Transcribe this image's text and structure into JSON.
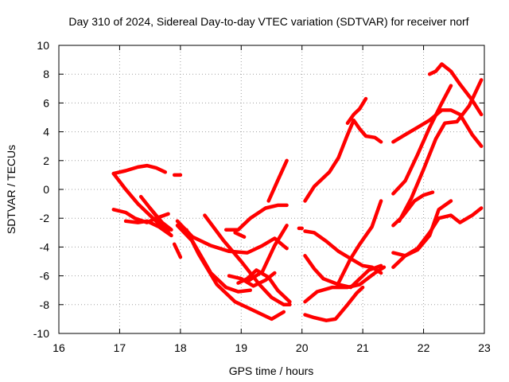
{
  "chart_data": {
    "type": "line",
    "title": "Day 310 of 2024, Sidereal Day-to-day VTEC variation (SDTVAR) for receiver norf",
    "xlabel": "GPS time / hours",
    "ylabel": "SDTVAR / TECUs",
    "xlim": [
      16,
      23
    ],
    "ylim": [
      -10,
      10
    ],
    "xticks": [
      16,
      17,
      18,
      19,
      20,
      21,
      22,
      23
    ],
    "yticks": [
      -10,
      -8,
      -6,
      -4,
      -2,
      0,
      2,
      4,
      6,
      8,
      10
    ],
    "grid": true,
    "legend": "none",
    "color": "#ff0000",
    "series": [
      {
        "x": [
          16.9,
          17.1,
          17.3,
          17.45,
          17.6,
          17.75
        ],
        "y": [
          1.1,
          1.3,
          1.55,
          1.65,
          1.5,
          1.2
        ]
      },
      {
        "x": [
          17.9,
          18.0
        ],
        "y": [
          1.0,
          1.0
        ]
      },
      {
        "x": [
          16.9,
          17.1,
          17.3,
          17.5,
          17.7,
          17.85
        ],
        "y": [
          1.1,
          0.0,
          -1.0,
          -1.8,
          -2.6,
          -3.2
        ]
      },
      {
        "x": [
          16.9,
          17.1,
          17.25,
          17.45,
          17.6,
          17.8
        ],
        "y": [
          -1.4,
          -1.6,
          -2.0,
          -2.3,
          -2.0,
          -1.7
        ]
      },
      {
        "x": [
          17.1,
          17.3,
          17.45,
          17.65,
          17.85
        ],
        "y": [
          -2.2,
          -2.3,
          -2.2,
          -2.6,
          -3.2
        ]
      },
      {
        "x": [
          17.35,
          17.5,
          17.7,
          17.85
        ],
        "y": [
          -0.5,
          -1.3,
          -2.3,
          -2.8
        ]
      },
      {
        "x": [
          17.5,
          17.65,
          17.8
        ],
        "y": [
          -1.3,
          -2.1,
          -2.9
        ]
      },
      {
        "x": [
          17.9,
          18.0
        ],
        "y": [
          -3.8,
          -4.7
        ]
      },
      {
        "x": [
          17.95,
          18.2,
          18.5,
          18.8,
          19.1,
          19.35,
          19.55,
          19.75
        ],
        "y": [
          -2.2,
          -3.3,
          -3.9,
          -4.3,
          -4.4,
          -3.9,
          -3.4,
          -4.1
        ]
      },
      {
        "x": [
          17.95,
          18.2,
          18.5,
          18.75,
          18.95,
          19.15
        ],
        "y": [
          -2.5,
          -3.6,
          -5.8,
          -6.8,
          -7.1,
          -7.0
        ]
      },
      {
        "x": [
          18.1,
          18.3,
          18.6,
          18.9,
          19.2,
          19.5,
          19.7
        ],
        "y": [
          -2.8,
          -4.5,
          -6.6,
          -7.8,
          -8.4,
          -9.0,
          -8.5
        ]
      },
      {
        "x": [
          18.4,
          18.7,
          19.0,
          19.3,
          19.5,
          19.7,
          19.8
        ],
        "y": [
          -1.8,
          -3.5,
          -5.0,
          -6.6,
          -7.5,
          -8.0,
          -8.0
        ]
      },
      {
        "x": [
          18.8,
          19.0,
          19.2,
          19.4,
          19.55
        ],
        "y": [
          -6.0,
          -6.2,
          -6.7,
          -6.3,
          -5.8
        ]
      },
      {
        "x": [
          18.95,
          19.1,
          19.25,
          19.45,
          19.6,
          19.8
        ],
        "y": [
          -6.5,
          -6.2,
          -5.6,
          -6.1,
          -7.0,
          -7.8
        ]
      },
      {
        "x": [
          19.1,
          19.35,
          19.55,
          19.75
        ],
        "y": [
          -6.4,
          -5.7,
          -3.9,
          -2.5
        ]
      },
      {
        "x": [
          18.75,
          18.95,
          19.15,
          19.4,
          19.6,
          19.75
        ],
        "y": [
          -2.8,
          -2.8,
          -2.0,
          -1.3,
          -1.1,
          -1.1
        ]
      },
      {
        "x": [
          19.45,
          19.6,
          19.75
        ],
        "y": [
          -0.8,
          0.6,
          2.0
        ]
      },
      {
        "x": [
          18.9,
          19.05
        ],
        "y": [
          -3.0,
          -3.3
        ]
      },
      {
        "x": [
          19.95,
          20.0
        ],
        "y": [
          -2.7,
          -2.7
        ]
      },
      {
        "x": [
          20.05,
          20.2,
          20.45,
          20.6,
          20.75,
          20.85,
          20.95,
          21.05,
          21.2,
          21.3
        ],
        "y": [
          -0.8,
          0.2,
          1.2,
          2.2,
          3.8,
          4.8,
          4.2,
          3.7,
          3.6,
          3.3
        ]
      },
      {
        "x": [
          20.75,
          20.85,
          20.95,
          21.05
        ],
        "y": [
          4.6,
          5.2,
          5.6,
          6.3
        ]
      },
      {
        "x": [
          20.05,
          20.2,
          20.4,
          20.6,
          20.8,
          21.0,
          21.15,
          21.3
        ],
        "y": [
          -2.9,
          -3.0,
          -3.6,
          -4.3,
          -4.8,
          -5.3,
          -5.4,
          -5.8
        ]
      },
      {
        "x": [
          20.05,
          20.2,
          20.35,
          20.6,
          20.8,
          20.95,
          21.1,
          21.3
        ],
        "y": [
          -4.6,
          -5.5,
          -6.2,
          -6.6,
          -6.8,
          -6.2,
          -5.6,
          -5.3
        ]
      },
      {
        "x": [
          20.05,
          20.25,
          20.5,
          20.75,
          20.95,
          21.2,
          21.35
        ],
        "y": [
          -7.8,
          -7.1,
          -6.8,
          -6.8,
          -6.6,
          -5.8,
          -5.4
        ]
      },
      {
        "x": [
          20.05,
          20.2,
          20.4,
          20.55,
          20.75,
          20.9,
          21.0
        ],
        "y": [
          -8.7,
          -8.9,
          -9.1,
          -9.0,
          -8.0,
          -7.2,
          -6.8
        ]
      },
      {
        "x": [
          20.6,
          20.8,
          20.95,
          21.15,
          21.3
        ],
        "y": [
          -6.5,
          -4.8,
          -3.8,
          -2.6,
          -0.8
        ]
      },
      {
        "x": [
          21.5,
          21.7,
          21.9,
          22.1,
          22.3,
          22.45,
          22.6,
          22.8,
          22.95
        ],
        "y": [
          3.3,
          3.8,
          4.3,
          4.8,
          5.5,
          5.5,
          5.2,
          3.8,
          3.0
        ]
      },
      {
        "x": [
          22.1,
          22.2,
          22.3,
          22.45,
          22.6,
          22.8,
          22.95
        ],
        "y": [
          8.0,
          8.2,
          8.7,
          8.2,
          7.3,
          6.2,
          5.2
        ]
      },
      {
        "x": [
          21.5,
          21.7,
          21.9,
          22.1,
          22.3,
          22.45
        ],
        "y": [
          -0.3,
          0.6,
          2.4,
          4.3,
          6.0,
          7.2
        ]
      },
      {
        "x": [
          21.6,
          21.8,
          22.0,
          22.2,
          22.35,
          22.55,
          22.75,
          22.95
        ],
        "y": [
          -2.2,
          -0.6,
          1.4,
          3.5,
          4.6,
          4.7,
          5.8,
          7.6
        ]
      },
      {
        "x": [
          21.5,
          21.7,
          21.9,
          22.1,
          22.25,
          22.45
        ],
        "y": [
          -4.4,
          -4.6,
          -4.2,
          -3.2,
          -1.4,
          -0.8
        ]
      },
      {
        "x": [
          21.5,
          21.7,
          21.9,
          22.1,
          22.25,
          22.45,
          22.6,
          22.8,
          22.95
        ],
        "y": [
          -5.4,
          -4.6,
          -4.1,
          -3.0,
          -2.0,
          -1.8,
          -2.3,
          -1.8,
          -1.3
        ]
      },
      {
        "x": [
          21.5,
          21.65,
          21.85,
          22.0,
          22.15
        ],
        "y": [
          -2.5,
          -1.9,
          -0.8,
          -0.4,
          -0.2
        ]
      }
    ]
  }
}
